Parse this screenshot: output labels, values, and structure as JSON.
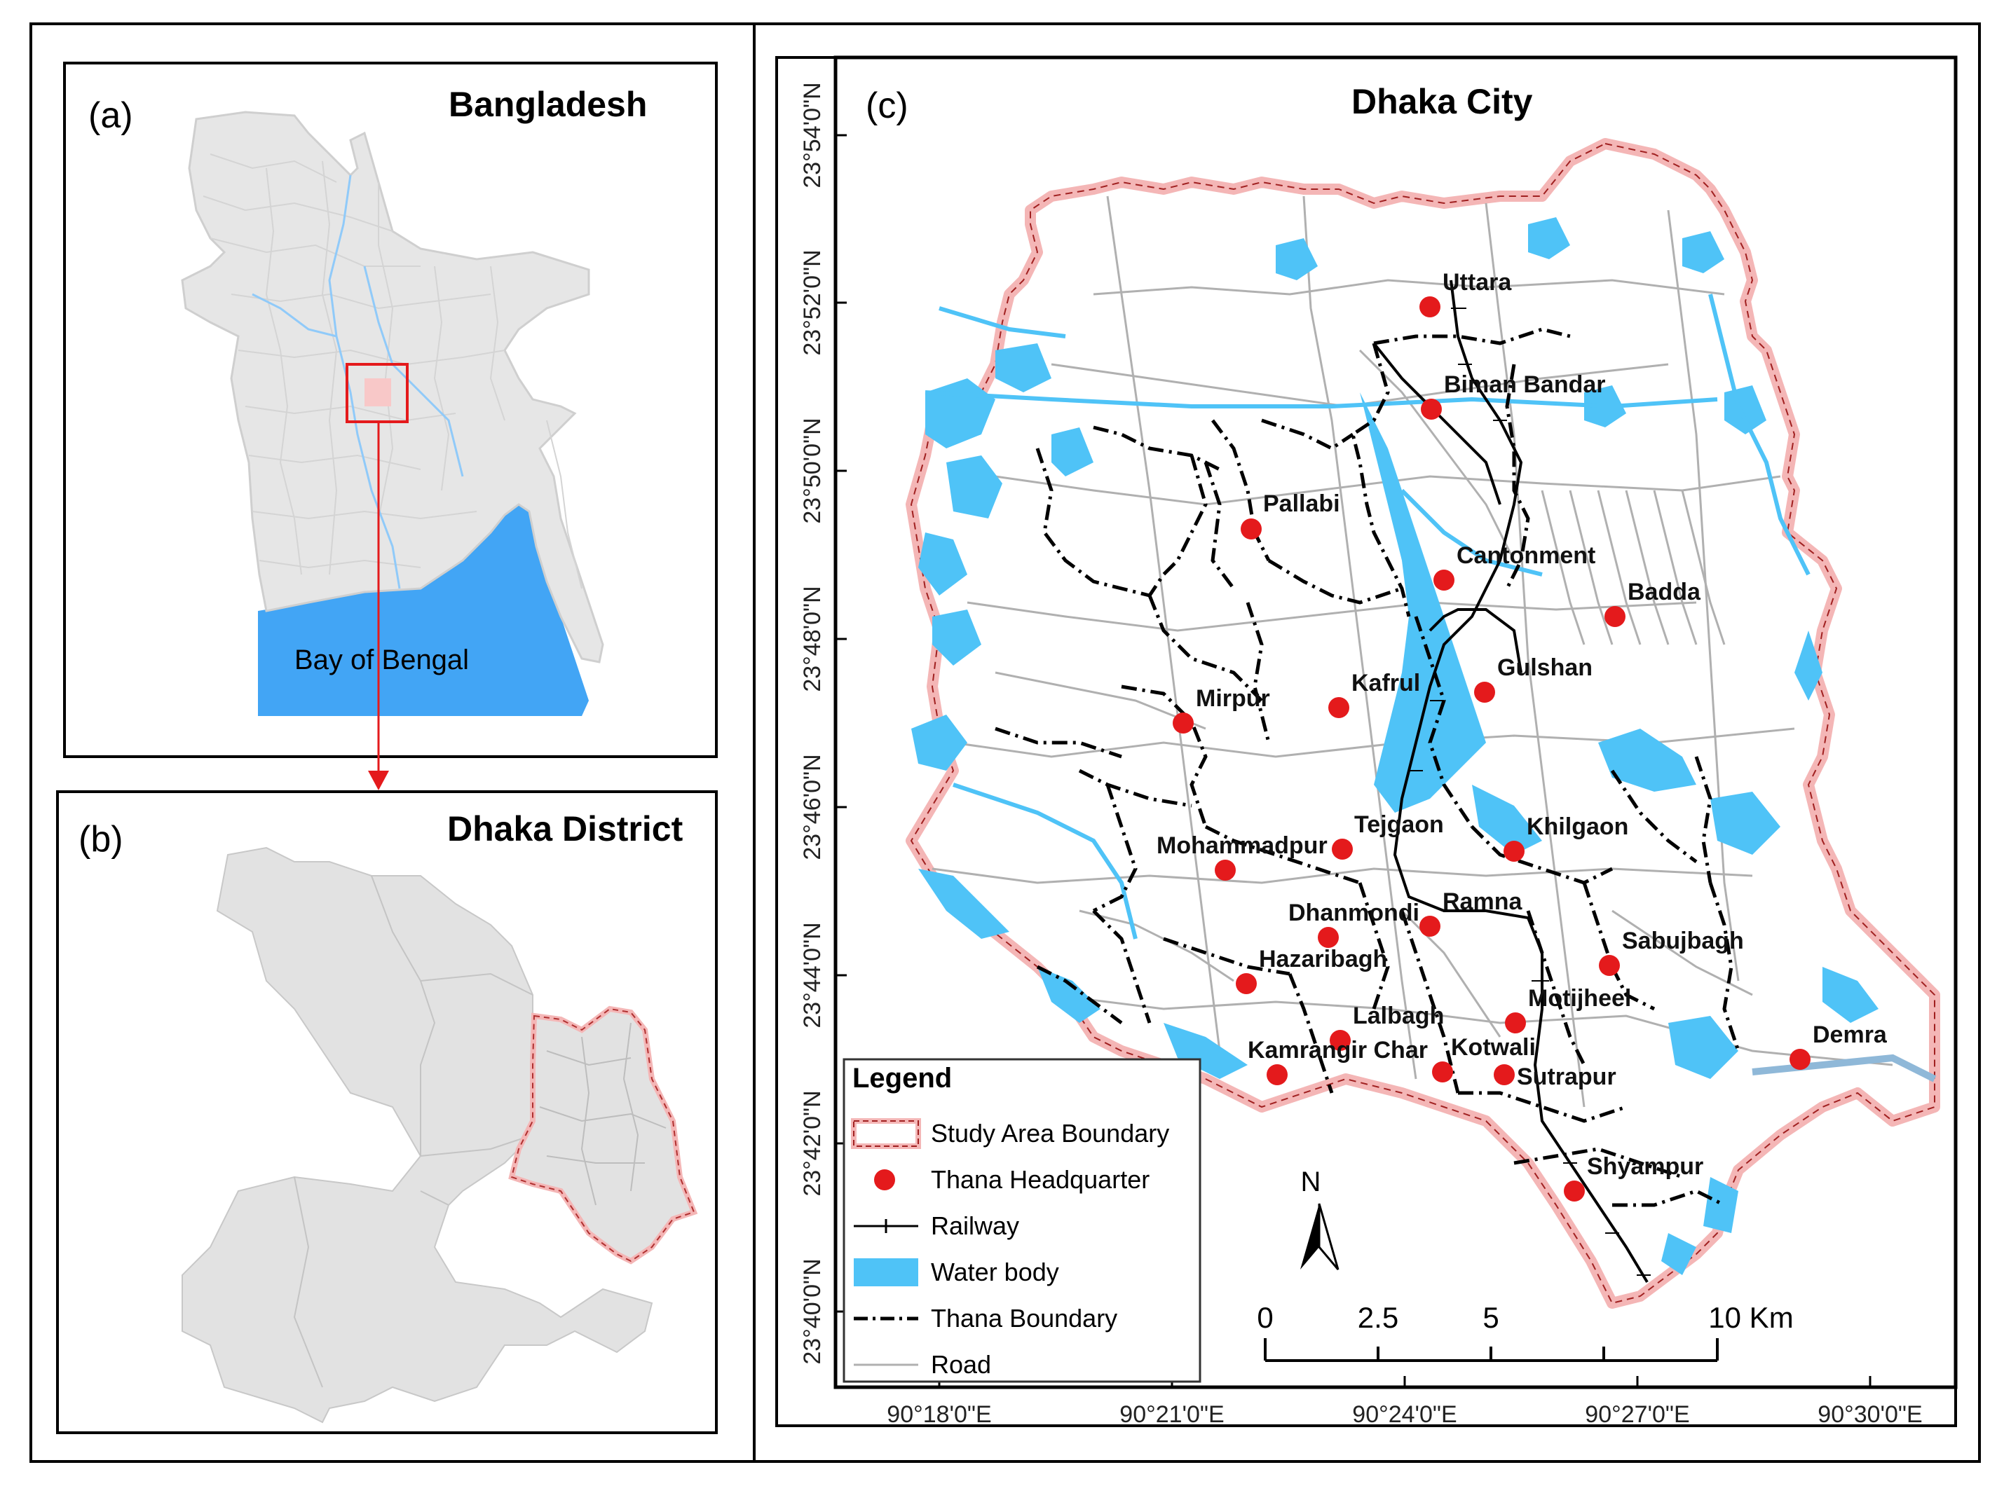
{
  "panels": {
    "a": {
      "letter": "(a)",
      "title": "Bangladesh",
      "sea_label": "Bay of Bengal"
    },
    "b": {
      "letter": "(b)",
      "title": "Dhaka District"
    },
    "c": {
      "letter": "(c)",
      "title": "Dhaka City"
    }
  },
  "axes": {
    "latitude_labels": [
      "23°54'0\"N",
      "23°52'0\"N",
      "23°50'0\"N",
      "23°48'0\"N",
      "23°46'0\"N",
      "23°44'0\"N",
      "23°42'0\"N",
      "23°40'0\"N"
    ],
    "longitude_labels": [
      "90°18'0\"E",
      "90°21'0\"E",
      "90°24'0\"E",
      "90°27'0\"E",
      "90°30'0\"E"
    ]
  },
  "thanas": [
    {
      "name": "Uttara"
    },
    {
      "name": "Biman Bandar"
    },
    {
      "name": "Pallabi"
    },
    {
      "name": "Cantonment"
    },
    {
      "name": "Badda"
    },
    {
      "name": "Gulshan"
    },
    {
      "name": "Kafrul"
    },
    {
      "name": "Mirpur"
    },
    {
      "name": "Tejgaon"
    },
    {
      "name": "Khilgaon"
    },
    {
      "name": "Mohammadpur"
    },
    {
      "name": "Ramna"
    },
    {
      "name": "Dhanmondi"
    },
    {
      "name": "Sabujbagh"
    },
    {
      "name": "Hazaribagh"
    },
    {
      "name": "Motijheel"
    },
    {
      "name": "Lalbagh"
    },
    {
      "name": "Kamrangir Char"
    },
    {
      "name": "Kotwali"
    },
    {
      "name": "Sutrapur"
    },
    {
      "name": "Demra"
    },
    {
      "name": "Shyampur"
    }
  ],
  "legend": {
    "title": "Legend",
    "items": [
      {
        "label": "Study Area Boundary",
        "symbol": "study-area"
      },
      {
        "label": "Thana Headquarter",
        "symbol": "red-dot"
      },
      {
        "label": "Railway",
        "symbol": "railway"
      },
      {
        "label": "Water body",
        "symbol": "water"
      },
      {
        "label": "Thana Boundary",
        "symbol": "dash-dot"
      },
      {
        "label": "Road",
        "symbol": "road"
      }
    ]
  },
  "north_arrow": {
    "label": "N"
  },
  "scale_bar": {
    "ticks": [
      "0",
      "2.5",
      "5",
      "10 Km"
    ]
  },
  "colors": {
    "water": "#4fc3f7",
    "sea": "#42a5f5",
    "thana_dot": "#e41a1c",
    "study_boundary": "#f4b6b6",
    "road": "#b0b0b0",
    "district_fill": "#e2e2e2",
    "highlight_box": "#e41a1c"
  }
}
